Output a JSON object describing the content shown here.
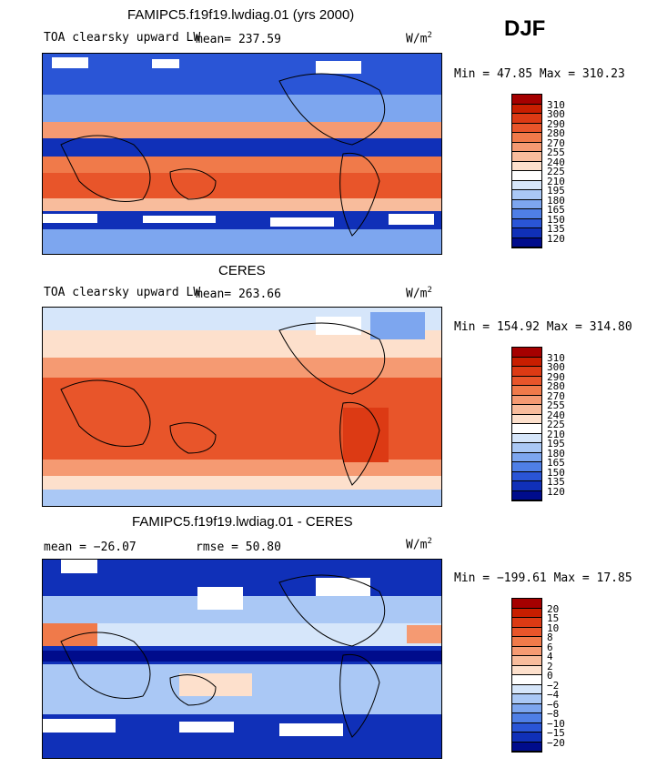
{
  "season": "DJF",
  "panels": [
    {
      "title": "FAMIPC5.f19f19.lwdiag.01 (yrs 2000)",
      "variable": "TOA clearsky upward LW",
      "mean_label": "mean= 237.59",
      "rmse_label": "",
      "units_base": "W/m",
      "units_exp": "2",
      "minmax": "Min =  47.85 Max = 310.23",
      "colorbar_labels": [
        "310",
        "300",
        "290",
        "280",
        "270",
        "255",
        "240",
        "225",
        "210",
        "195",
        "180",
        "165",
        "150",
        "135",
        "120"
      ],
      "colorbar_colors": [
        "#a50000",
        "#c81e00",
        "#dc3a14",
        "#e8552a",
        "#f07a4a",
        "#f59a72",
        "#f8bc9c",
        "#fde0cc",
        "#ffffff",
        "#d6e6fa",
        "#aac8f5",
        "#7da6ef",
        "#4f7fe6",
        "#2a55d6",
        "#1030b8",
        "#000c8c"
      ],
      "map_style": "model"
    },
    {
      "title": "CERES",
      "variable": "TOA clearsky upward LW",
      "mean_label": "mean= 263.66",
      "rmse_label": "",
      "units_base": "W/m",
      "units_exp": "2",
      "minmax": "Min = 154.92 Max = 314.80",
      "colorbar_labels": [
        "310",
        "300",
        "290",
        "280",
        "270",
        "255",
        "240",
        "225",
        "210",
        "195",
        "180",
        "165",
        "150",
        "135",
        "120"
      ],
      "colorbar_colors": [
        "#a50000",
        "#c81e00",
        "#dc3a14",
        "#e8552a",
        "#f07a4a",
        "#f59a72",
        "#f8bc9c",
        "#fde0cc",
        "#ffffff",
        "#d6e6fa",
        "#aac8f5",
        "#7da6ef",
        "#4f7fe6",
        "#2a55d6",
        "#1030b8",
        "#000c8c"
      ],
      "map_style": "obs"
    },
    {
      "title": "FAMIPC5.f19f19.lwdiag.01 - CERES",
      "variable": "",
      "mean_label": "mean = −26.07",
      "rmse_label": "rmse =  50.80",
      "units_base": "W/m",
      "units_exp": "2",
      "minmax": "Min = −199.61 Max =  17.85",
      "colorbar_labels": [
        "20",
        "15",
        "10",
        "8",
        "6",
        "4",
        "2",
        "0",
        "−2",
        "−4",
        "−6",
        "−8",
        "−10",
        "−15",
        "−20"
      ],
      "colorbar_colors": [
        "#a50000",
        "#c81e00",
        "#dc3a14",
        "#e8552a",
        "#f07a4a",
        "#f59a72",
        "#f8bc9c",
        "#fde0cc",
        "#ffffff",
        "#d6e6fa",
        "#aac8f5",
        "#7da6ef",
        "#4f7fe6",
        "#2a55d6",
        "#1030b8",
        "#000c8c"
      ],
      "map_style": "diff"
    }
  ]
}
